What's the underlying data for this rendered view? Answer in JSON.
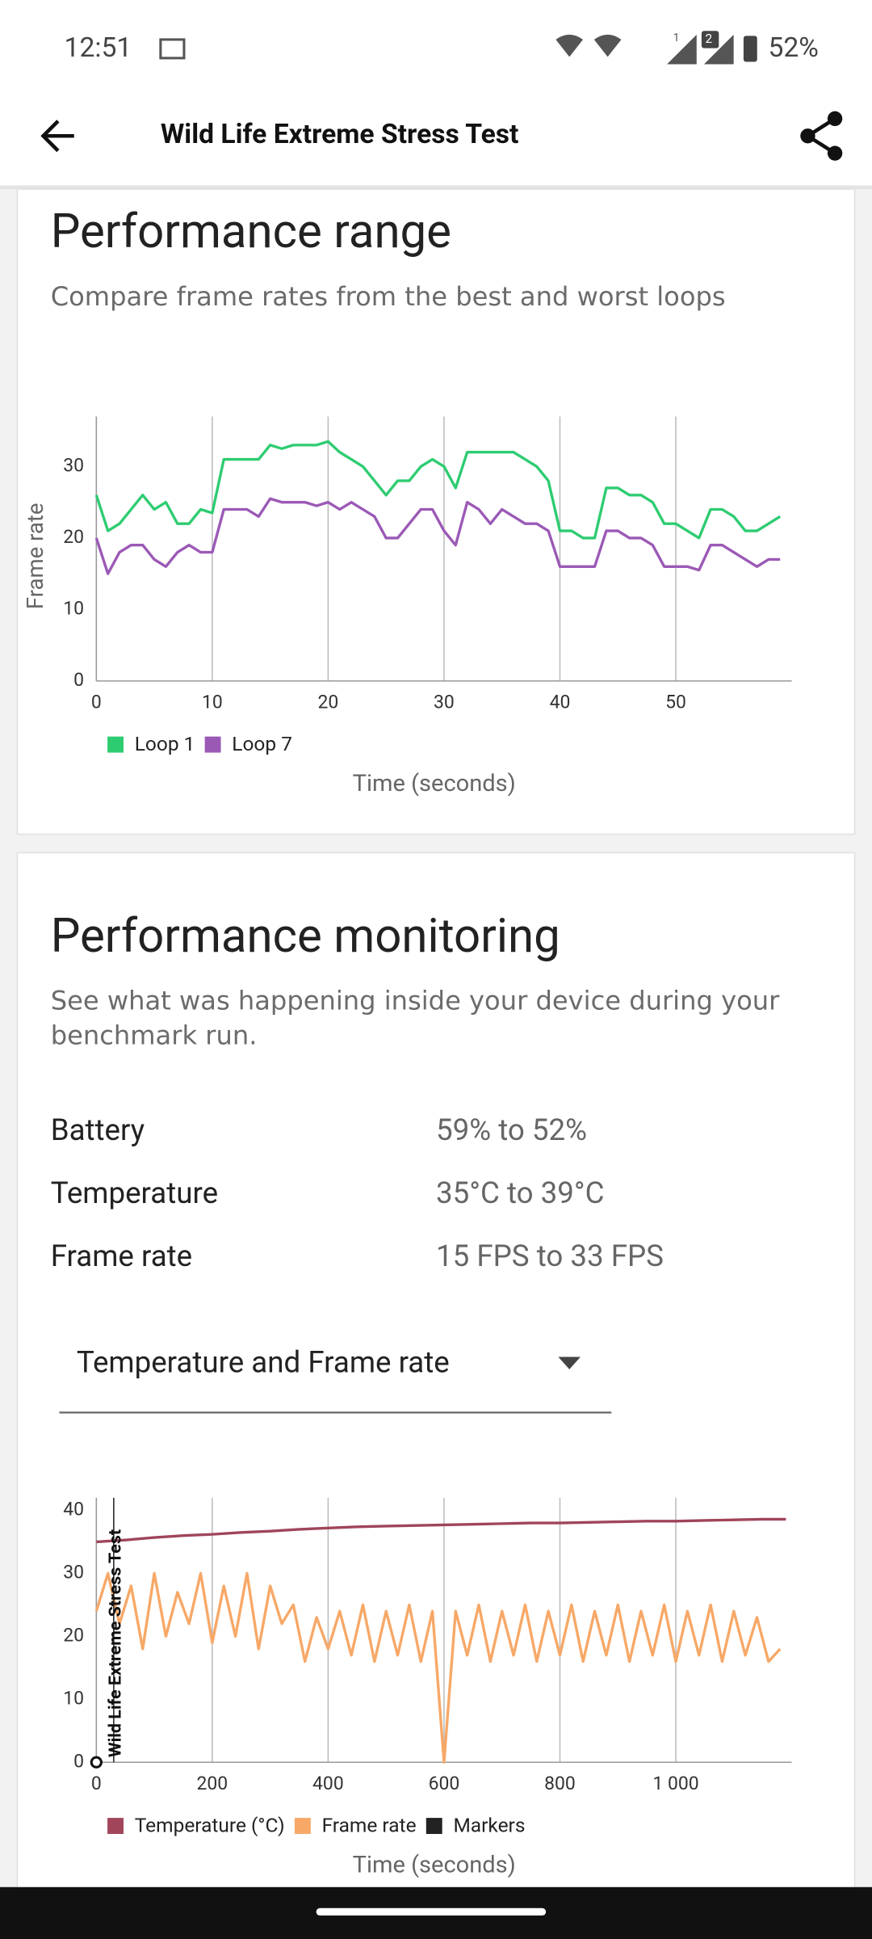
{
  "status_bar": {
    "time": "12:51",
    "sim_badges": [
      "1",
      "2"
    ],
    "battery": "52%"
  },
  "app_bar": {
    "title": "Wild Life Extreme Stress Test"
  },
  "performance_range": {
    "title": "Performance range",
    "subtitle": "Compare frame rates from the best and worst loops",
    "chart": {
      "type": "line",
      "y_label": "Frame rate",
      "x_label": "Time (seconds)",
      "grid": "x",
      "x": [
        0,
        1,
        2,
        3,
        4,
        5,
        6,
        7,
        8,
        9,
        10,
        11,
        12,
        13,
        14,
        15,
        16,
        17,
        18,
        19,
        20,
        21,
        22,
        23,
        24,
        25,
        26,
        27,
        28,
        29,
        30,
        31,
        32,
        33,
        34,
        35,
        36,
        37,
        38,
        39,
        40,
        41,
        42,
        43,
        44,
        45,
        46,
        47,
        48,
        49,
        50,
        51,
        52,
        53,
        54,
        55,
        56,
        57,
        58,
        59
      ],
      "xlim": [
        0,
        60
      ],
      "xticks": [
        0,
        10,
        20,
        30,
        40,
        50
      ],
      "ylim": [
        0,
        37
      ],
      "yticks": [
        0,
        10,
        20,
        30
      ],
      "series": [
        {
          "name": "Loop 1",
          "color": "#2ecc71",
          "values": [
            26,
            21,
            22,
            24,
            26,
            24,
            25,
            22,
            22,
            24,
            23.5,
            31,
            31,
            31,
            31,
            33,
            32.5,
            33,
            33,
            33,
            33.5,
            32,
            31,
            30,
            28,
            26,
            28,
            28,
            30,
            31,
            30,
            27,
            32,
            32,
            32,
            32,
            32,
            31,
            30,
            28,
            21,
            21,
            20,
            20,
            27,
            27,
            26,
            26,
            25,
            22,
            22,
            21,
            20,
            24,
            24,
            23,
            21,
            21,
            22,
            23
          ]
        },
        {
          "name": "Loop 7",
          "color": "#9b59b6",
          "values": [
            20,
            15,
            18,
            19,
            19,
            17,
            16,
            18,
            19,
            18,
            18,
            24,
            24,
            24,
            23,
            25.5,
            25,
            25,
            25,
            24.5,
            25,
            24,
            25,
            24,
            23,
            20,
            20,
            22,
            24,
            24,
            21,
            19,
            25,
            24,
            22,
            24,
            23,
            22,
            22,
            21,
            16,
            16,
            16,
            16,
            21,
            21,
            20,
            20,
            19,
            16,
            16,
            16,
            15.5,
            19,
            19,
            18,
            17,
            16,
            17,
            17
          ]
        }
      ]
    }
  },
  "performance_monitoring": {
    "title": "Performance monitoring",
    "subtitle": "See what was happening inside your device during your benchmark run.",
    "stats": {
      "rows": [
        [
          "Battery",
          "59% to 52%"
        ],
        [
          "Temperature",
          "35°C to 39°C"
        ],
        [
          "Frame rate",
          "15 FPS to 33 FPS"
        ]
      ]
    },
    "dropdown": "Temperature and Frame rate",
    "chart": {
      "type": "line",
      "x_label": "Time (seconds)",
      "grid": "x",
      "xlim": [
        0,
        1200
      ],
      "xticks": [
        0,
        200,
        400,
        600,
        800,
        {
          "value": 1000,
          "label": "1 000"
        }
      ],
      "ylim": [
        0,
        42
      ],
      "yticks": [
        0,
        10,
        20,
        30,
        40
      ],
      "series": [
        {
          "name": "Temperature (°C)",
          "color": "#a0455a",
          "x": [
            0,
            50,
            100,
            150,
            200,
            250,
            300,
            350,
            400,
            450,
            500,
            550,
            600,
            650,
            700,
            750,
            800,
            850,
            900,
            950,
            1000,
            1050,
            1100,
            1150,
            1190
          ],
          "values": [
            35,
            35.3,
            35.7,
            36,
            36.2,
            36.5,
            36.7,
            37,
            37.2,
            37.4,
            37.5,
            37.6,
            37.7,
            37.8,
            37.9,
            38,
            38,
            38.1,
            38.2,
            38.3,
            38.3,
            38.4,
            38.5,
            38.6,
            38.6
          ]
        },
        {
          "name": "Frame rate",
          "color": "#f7a867",
          "x": [
            0,
            20,
            40,
            60,
            80,
            100,
            120,
            140,
            160,
            180,
            200,
            220,
            240,
            260,
            280,
            300,
            320,
            340,
            360,
            380,
            400,
            420,
            440,
            460,
            480,
            500,
            520,
            540,
            560,
            580,
            600,
            620,
            640,
            660,
            680,
            700,
            720,
            740,
            760,
            780,
            800,
            820,
            840,
            860,
            880,
            900,
            920,
            940,
            960,
            980,
            1000,
            1020,
            1040,
            1060,
            1080,
            1100,
            1120,
            1140,
            1160,
            1180
          ],
          "values": [
            24,
            30,
            22,
            28,
            18,
            30,
            20,
            27,
            22,
            30,
            19,
            28,
            20,
            30,
            18,
            28,
            22,
            25,
            16,
            23,
            18,
            24,
            17,
            25,
            16,
            24,
            17,
            25,
            16,
            24,
            0,
            24,
            17,
            25,
            16,
            24,
            17,
            25,
            16,
            24,
            17,
            25,
            16,
            24,
            17,
            25,
            16,
            24,
            17,
            25,
            16,
            24,
            17,
            25,
            16,
            24,
            17,
            23,
            16,
            18
          ]
        }
      ],
      "markers": {
        "name": "Markers",
        "color": "#222222",
        "x": [
          30
        ],
        "labels": [
          "Wild Life Extreme Stress Test"
        ]
      }
    }
  }
}
